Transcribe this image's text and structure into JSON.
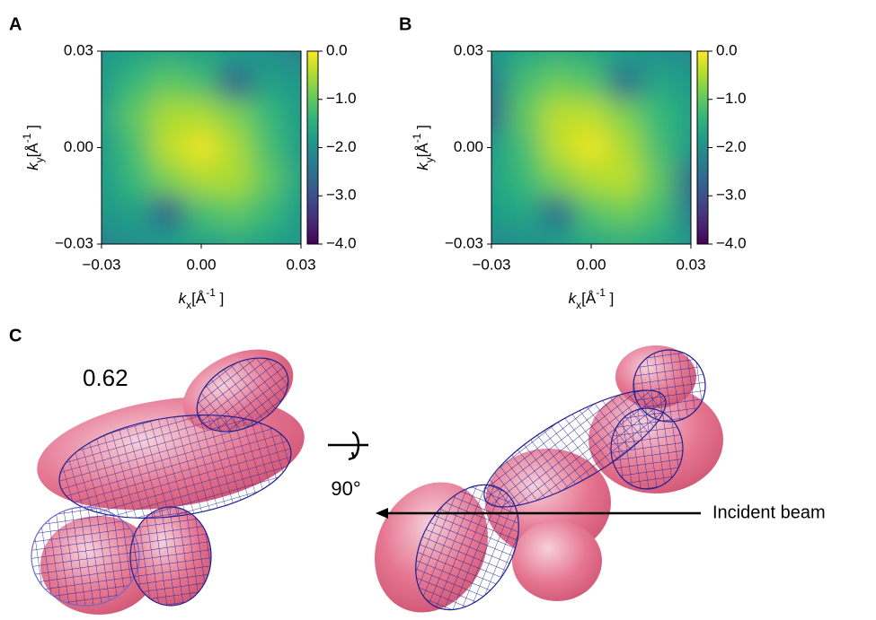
{
  "chart_data": [
    {
      "type": "heatmap",
      "label": "A",
      "xlabel": {
        "var": "k",
        "sub": "x",
        "unit": "[Å",
        "sup": "-1",
        "end": " ]"
      },
      "ylabel": {
        "var": "k",
        "sub": "y",
        "unit": "[Å",
        "sup": "-1",
        "end": " ]"
      },
      "xlim": [
        -0.03,
        0.03
      ],
      "ylim": [
        -0.03,
        0.03
      ],
      "xticks": [
        {
          "value": -0.03,
          "label": "−0.03"
        },
        {
          "value": 0,
          "label": "0.00"
        },
        0.03
      ],
      "yticks": [
        {
          "value": -0.03,
          "label": "−0.03"
        },
        {
          "value": 0,
          "label": "0.00"
        },
        0.03
      ],
      "x": [
        -0.03,
        -0.02,
        -0.01,
        0,
        0.01,
        0.02,
        0.03
      ],
      "y": [
        0.03,
        0.02,
        0.01,
        0,
        -0.01,
        -0.02,
        -0.03
      ],
      "z": [
        [
          -1.9,
          -1.7,
          -1.6,
          -1.7,
          -1.8,
          -2.0,
          -2.2
        ],
        [
          -1.8,
          -1.3,
          -1.0,
          -1.2,
          -2.8,
          -1.7,
          -1.9
        ],
        [
          -1.7,
          -1.0,
          -0.5,
          -0.5,
          -0.8,
          -1.3,
          -1.8
        ],
        [
          -1.8,
          -1.2,
          -0.4,
          -0.1,
          -0.5,
          -1.2,
          -1.8
        ],
        [
          -1.8,
          -1.3,
          -0.8,
          -0.5,
          -0.5,
          -1.0,
          -1.7
        ],
        [
          -1.9,
          -1.7,
          -2.8,
          -1.2,
          -1.0,
          -1.3,
          -1.8
        ],
        [
          -2.2,
          -2.0,
          -1.8,
          -1.7,
          -1.6,
          -1.7,
          -1.9
        ]
      ],
      "colormap": "viridis",
      "clim": [
        -4.0,
        0.0
      ],
      "cticks": [
        {
          "value": 0,
          "label": "0.0"
        },
        {
          "value": -1,
          "label": "−1.0"
        },
        {
          "value": -2,
          "label": "−2.0"
        },
        {
          "value": -3,
          "label": "−3.0"
        },
        {
          "value": -4,
          "label": "−4.0"
        }
      ]
    },
    {
      "type": "heatmap",
      "label": "B",
      "xlabel": {
        "var": "k",
        "sub": "x",
        "unit": "[Å",
        "sup": "-1",
        "end": " ]"
      },
      "ylabel": {
        "var": "k",
        "sub": "y",
        "unit": "[Å",
        "sup": "-1",
        "end": " ]"
      },
      "xlim": [
        -0.03,
        0.03
      ],
      "ylim": [
        -0.03,
        0.03
      ],
      "xticks": [
        {
          "value": -0.03,
          "label": "−0.03"
        },
        {
          "value": 0,
          "label": "0.00"
        },
        0.03
      ],
      "yticks": [
        {
          "value": -0.03,
          "label": "−0.03"
        },
        {
          "value": 0,
          "label": "0.00"
        },
        0.03
      ],
      "x": [
        -0.03,
        -0.02,
        -0.01,
        0,
        0.01,
        0.02,
        0.03
      ],
      "y": [
        0.03,
        0.02,
        0.01,
        0,
        -0.01,
        -0.02,
        -0.03
      ],
      "z": [
        [
          -1.9,
          -1.6,
          -1.5,
          -1.6,
          -1.8,
          -2.0,
          -2.1
        ],
        [
          -2.3,
          -1.2,
          -0.9,
          -1.1,
          -2.6,
          -1.6,
          -1.8
        ],
        [
          -2.6,
          -1.0,
          -0.4,
          -0.4,
          -0.8,
          -1.3,
          -1.7
        ],
        [
          -1.8,
          -1.2,
          -0.4,
          -0.1,
          -0.5,
          -1.2,
          -1.8
        ],
        [
          -1.7,
          -1.3,
          -0.8,
          -0.5,
          -0.4,
          -1.0,
          -2.6
        ],
        [
          -1.8,
          -1.6,
          -2.6,
          -1.1,
          -0.9,
          -1.2,
          -2.3
        ],
        [
          -2.1,
          -2.0,
          -1.8,
          -1.6,
          -1.5,
          -1.6,
          -1.9
        ]
      ],
      "colormap": "viridis",
      "clim": [
        -4.0,
        0.0
      ],
      "cticks": [
        {
          "value": 0,
          "label": "0.0"
        },
        {
          "value": -1,
          "label": "−1.0"
        },
        {
          "value": -2,
          "label": "−2.0"
        },
        {
          "value": -3,
          "label": "−3.0"
        },
        {
          "value": -4,
          "label": "−4.0"
        }
      ]
    }
  ],
  "panel_c": {
    "label": "C",
    "value_label": "0.62",
    "rotation": "90°",
    "beam": "Incident beam"
  }
}
